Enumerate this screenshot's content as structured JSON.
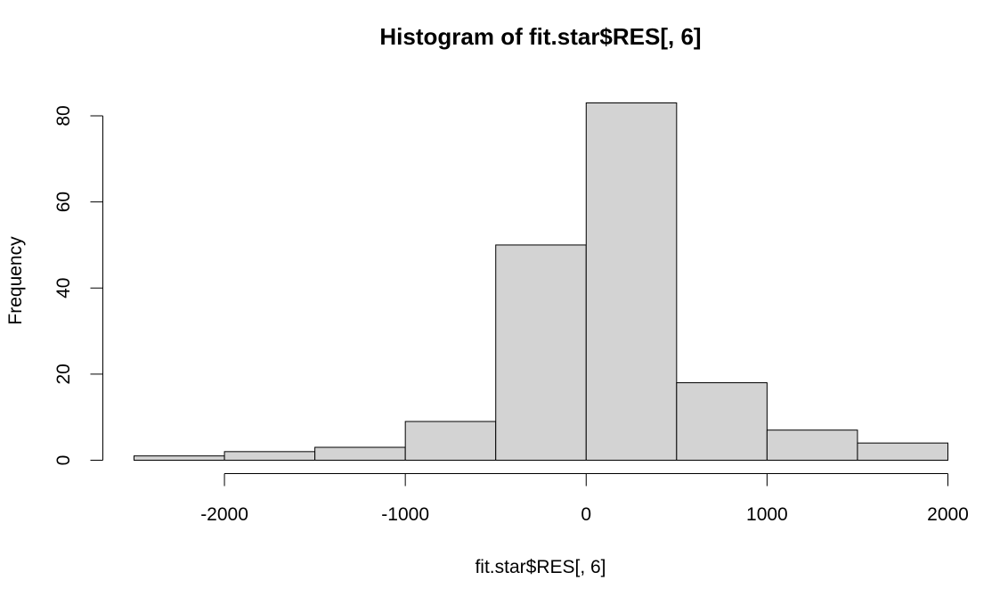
{
  "chart_data": {
    "type": "bar",
    "title": "Histogram of fit.star$RES[, 6]",
    "xlabel": "fit.star$RES[, 6]",
    "ylabel": "Frequency",
    "bin_edges": [
      -2500,
      -2000,
      -1500,
      -1000,
      -500,
      0,
      500,
      1000,
      1500,
      2000
    ],
    "values": [
      1,
      2,
      3,
      9,
      50,
      83,
      18,
      7,
      4
    ],
    "xlim": [
      -2500,
      2000
    ],
    "ylim": [
      0,
      83
    ],
    "x_ticks": [
      -2000,
      -1000,
      0,
      1000,
      2000
    ],
    "x_tick_labels": [
      "-2000",
      "-1000",
      "0",
      "1000",
      "2000"
    ],
    "y_ticks": [
      0,
      20,
      40,
      60,
      80
    ],
    "y_tick_labels": [
      "0",
      "20",
      "40",
      "60",
      "80"
    ],
    "bar_fill": "#d3d3d3",
    "bar_stroke": "#000000",
    "grid": false,
    "legend": "none"
  }
}
